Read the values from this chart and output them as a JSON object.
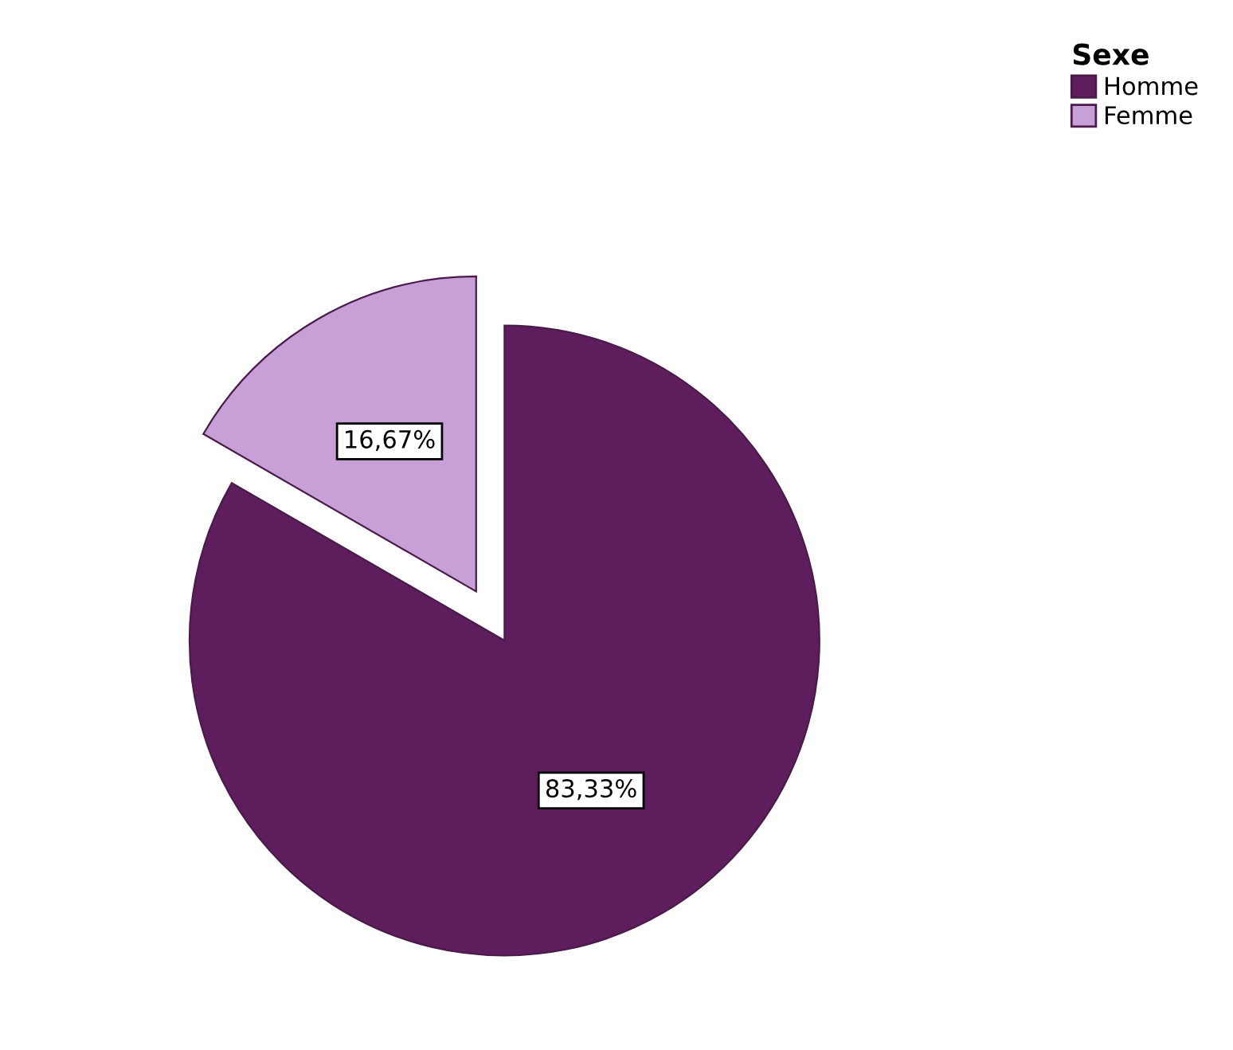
{
  "chart_data": {
    "type": "pie",
    "legend_title": "Sexe",
    "legend": "top right",
    "categories": [
      "Homme",
      "Femme"
    ],
    "values": [
      83.33,
      16.67
    ],
    "value_labels": [
      "83,33%",
      "16,67%"
    ],
    "colors": [
      "#5e1e5e",
      "#c8a0d8"
    ]
  }
}
